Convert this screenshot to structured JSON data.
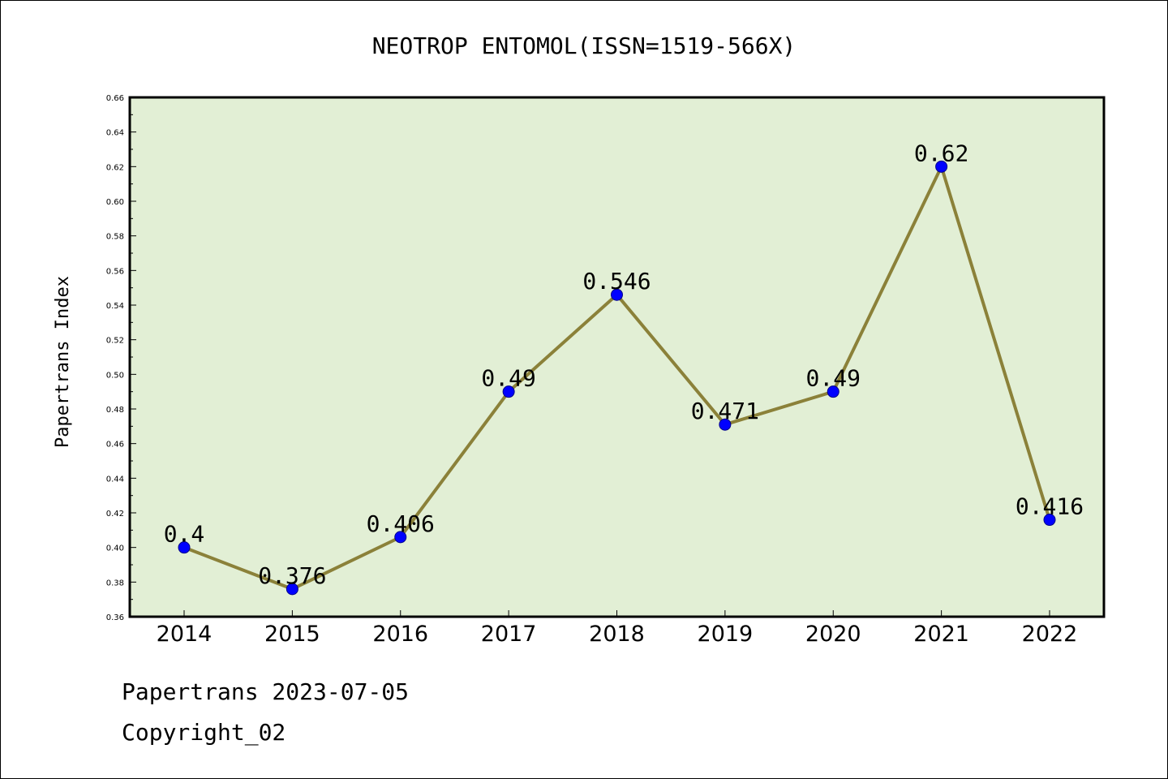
{
  "chart_data": {
    "type": "line",
    "title": "NEOTROP ENTOMOL(ISSN=1519-566X)",
    "ylabel": "Papertrans Index",
    "xlabel": "",
    "categories": [
      "2014",
      "2015",
      "2016",
      "2017",
      "2018",
      "2019",
      "2020",
      "2021",
      "2022"
    ],
    "series": [
      {
        "values": [
          0.4,
          0.376,
          0.406,
          0.49,
          0.546,
          0.471,
          0.49,
          0.62,
          0.416
        ],
        "labels": [
          "0.4",
          "0.376",
          "0.406",
          "0.49",
          "0.546",
          "0.471",
          "0.49",
          "0.62",
          "0.416"
        ]
      }
    ],
    "ylim": [
      0.36,
      0.66
    ],
    "yticks": [
      "0.36",
      "0.38",
      "0.40",
      "0.42",
      "0.44",
      "0.46",
      "0.48",
      "0.50",
      "0.52",
      "0.54",
      "0.56",
      "0.58",
      "0.60",
      "0.62",
      "0.64",
      "0.66"
    ],
    "grid": false,
    "colors": {
      "plot_background": "#e2efd5",
      "line": "#8b8139",
      "marker": "#0000ff",
      "axis": "#000000"
    }
  },
  "footer": {
    "line1": "Papertrans 2023-07-05",
    "line2": "Copyright_02"
  }
}
